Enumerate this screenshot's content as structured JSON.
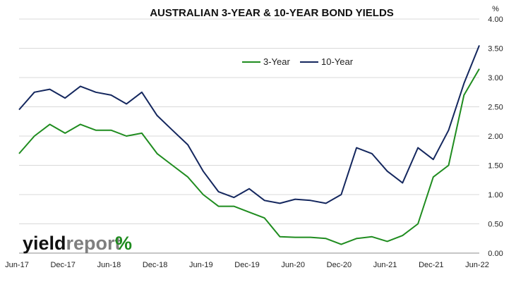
{
  "chart_data": {
    "type": "line",
    "title": "AUSTRALIAN 3-YEAR & 10-YEAR BOND YIELDS",
    "y_unit": "%",
    "xlabel": "",
    "ylabel": "",
    "ylim": [
      0,
      4
    ],
    "xlim": [
      "2017-06",
      "2022-06"
    ],
    "grid": "horizontal",
    "legend": "top-center",
    "x_tick_labels": [
      "Jun-17",
      "Dec-17",
      "Jun-18",
      "Dec-18",
      "Jun-19",
      "Dec-19",
      "Jun-20",
      "Dec-20",
      "Jun-21",
      "Dec-21",
      "Jun-22"
    ],
    "y_ticks": [
      "0.00",
      "0.50",
      "1.00",
      "1.50",
      "2.00",
      "2.50",
      "3.00",
      "3.50",
      "4.00"
    ],
    "x": [
      "2017-06",
      "2017-08",
      "2017-10",
      "2017-12",
      "2018-02",
      "2018-04",
      "2018-06",
      "2018-08",
      "2018-10",
      "2018-12",
      "2019-02",
      "2019-04",
      "2019-06",
      "2019-08",
      "2019-10",
      "2019-12",
      "2020-02",
      "2020-04",
      "2020-06",
      "2020-08",
      "2020-10",
      "2020-12",
      "2021-02",
      "2021-04",
      "2021-06",
      "2021-08",
      "2021-10",
      "2021-12",
      "2022-02",
      "2022-04",
      "2022-06"
    ],
    "series": [
      {
        "name": "3-Year",
        "color": "#1f8c1f",
        "values": [
          1.7,
          2.0,
          2.2,
          2.05,
          2.2,
          2.1,
          2.1,
          2.0,
          2.05,
          1.7,
          1.5,
          1.3,
          1.0,
          0.8,
          0.8,
          0.7,
          0.6,
          0.28,
          0.27,
          0.27,
          0.25,
          0.15,
          0.25,
          0.28,
          0.2,
          0.3,
          0.5,
          1.3,
          1.5,
          2.7,
          3.15
        ]
      },
      {
        "name": "10-Year",
        "color": "#14275e",
        "values": [
          2.45,
          2.75,
          2.8,
          2.65,
          2.85,
          2.75,
          2.7,
          2.55,
          2.75,
          2.35,
          2.1,
          1.85,
          1.4,
          1.05,
          0.95,
          1.1,
          0.9,
          0.85,
          0.92,
          0.9,
          0.85,
          1.0,
          1.8,
          1.7,
          1.4,
          1.2,
          1.8,
          1.6,
          2.1,
          2.9,
          3.55
        ]
      }
    ]
  },
  "logo": {
    "word_a": "yield",
    "word_b": "report",
    "symbol": "%"
  }
}
